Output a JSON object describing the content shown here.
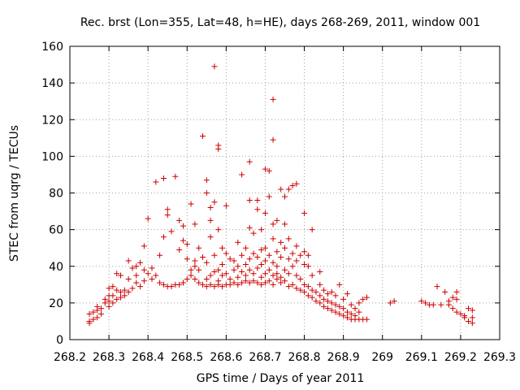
{
  "chart_data": {
    "type": "scatter",
    "title": "Rec. brst (Lon=355, Lat=48, h=HE), days 268-269, 2011, window 001",
    "xlabel": "GPS time / Days of year 2011",
    "ylabel": "STEC from uqrg / TECUs",
    "xlim": [
      268.2,
      269.3
    ],
    "ylim": [
      0,
      160
    ],
    "xticks": [
      "268.2",
      "268.3",
      "268.4",
      "268.5",
      "268.6",
      "268.7",
      "268.8",
      "268.9",
      "269",
      "269.1",
      "269.2",
      "269.3"
    ],
    "yticks": [
      "0",
      "20",
      "40",
      "60",
      "80",
      "100",
      "120",
      "140",
      "160"
    ],
    "grid": true,
    "marker": "+",
    "color": "#cc0000",
    "points": [
      [
        268.25,
        9
      ],
      [
        268.25,
        10
      ],
      [
        268.25,
        14
      ],
      [
        268.26,
        11
      ],
      [
        268.26,
        15
      ],
      [
        268.27,
        12
      ],
      [
        268.27,
        16
      ],
      [
        268.27,
        18
      ],
      [
        268.28,
        14
      ],
      [
        268.28,
        17
      ],
      [
        268.29,
        20
      ],
      [
        268.29,
        22
      ],
      [
        268.3,
        18
      ],
      [
        268.3,
        21
      ],
      [
        268.3,
        24
      ],
      [
        268.3,
        28
      ],
      [
        268.31,
        20
      ],
      [
        268.31,
        24
      ],
      [
        268.31,
        29
      ],
      [
        268.32,
        22
      ],
      [
        268.32,
        27
      ],
      [
        268.32,
        36
      ],
      [
        268.33,
        23
      ],
      [
        268.33,
        26
      ],
      [
        268.33,
        35
      ],
      [
        268.34,
        24
      ],
      [
        268.34,
        27
      ],
      [
        268.35,
        26
      ],
      [
        268.35,
        33
      ],
      [
        268.35,
        43
      ],
      [
        268.36,
        28
      ],
      [
        268.36,
        39
      ],
      [
        268.37,
        31
      ],
      [
        268.37,
        35
      ],
      [
        268.37,
        40
      ],
      [
        268.38,
        29
      ],
      [
        268.38,
        42
      ],
      [
        268.39,
        32
      ],
      [
        268.39,
        38
      ],
      [
        268.39,
        51
      ],
      [
        268.4,
        36
      ],
      [
        268.4,
        66
      ],
      [
        268.41,
        33
      ],
      [
        268.41,
        39
      ],
      [
        268.42,
        35
      ],
      [
        268.42,
        86
      ],
      [
        268.43,
        31
      ],
      [
        268.43,
        46
      ],
      [
        268.44,
        30
      ],
      [
        268.44,
        56
      ],
      [
        268.44,
        88
      ],
      [
        268.45,
        29
      ],
      [
        268.45,
        68
      ],
      [
        268.45,
        71
      ],
      [
        268.46,
        29
      ],
      [
        268.46,
        59
      ],
      [
        268.47,
        30
      ],
      [
        268.47,
        89
      ],
      [
        268.48,
        30
      ],
      [
        268.48,
        49
      ],
      [
        268.48,
        65
      ],
      [
        268.49,
        31
      ],
      [
        268.49,
        54
      ],
      [
        268.49,
        62
      ],
      [
        268.5,
        33
      ],
      [
        268.5,
        44
      ],
      [
        268.5,
        52
      ],
      [
        268.51,
        35
      ],
      [
        268.51,
        38
      ],
      [
        268.51,
        74
      ],
      [
        268.52,
        33
      ],
      [
        268.52,
        40
      ],
      [
        268.52,
        43
      ],
      [
        268.52,
        63
      ],
      [
        268.53,
        31
      ],
      [
        268.53,
        38
      ],
      [
        268.53,
        50
      ],
      [
        268.54,
        30
      ],
      [
        268.54,
        45
      ],
      [
        268.54,
        111
      ],
      [
        268.55,
        29
      ],
      [
        268.55,
        33
      ],
      [
        268.55,
        42
      ],
      [
        268.55,
        80
      ],
      [
        268.55,
        87
      ],
      [
        268.56,
        30
      ],
      [
        268.56,
        35
      ],
      [
        268.56,
        56
      ],
      [
        268.56,
        65
      ],
      [
        268.56,
        72
      ],
      [
        268.57,
        29
      ],
      [
        268.57,
        37
      ],
      [
        268.57,
        46
      ],
      [
        268.57,
        75
      ],
      [
        268.57,
        149
      ],
      [
        268.58,
        30
      ],
      [
        268.58,
        32
      ],
      [
        268.58,
        38
      ],
      [
        268.58,
        60
      ],
      [
        268.58,
        104
      ],
      [
        268.58,
        106
      ],
      [
        268.59,
        29
      ],
      [
        268.59,
        35
      ],
      [
        268.59,
        41
      ],
      [
        268.59,
        50
      ],
      [
        268.6,
        30
      ],
      [
        268.6,
        36
      ],
      [
        268.6,
        47
      ],
      [
        268.6,
        73
      ],
      [
        268.61,
        30
      ],
      [
        268.61,
        33
      ],
      [
        268.61,
        44
      ],
      [
        268.62,
        31
      ],
      [
        268.62,
        38
      ],
      [
        268.62,
        43
      ],
      [
        268.63,
        30
      ],
      [
        268.63,
        34
      ],
      [
        268.63,
        40
      ],
      [
        268.63,
        53
      ],
      [
        268.64,
        31
      ],
      [
        268.64,
        37
      ],
      [
        268.64,
        46
      ],
      [
        268.64,
        90
      ],
      [
        268.65,
        32
      ],
      [
        268.65,
        35
      ],
      [
        268.65,
        41
      ],
      [
        268.65,
        50
      ],
      [
        268.66,
        31
      ],
      [
        268.66,
        38
      ],
      [
        268.66,
        44
      ],
      [
        268.66,
        61
      ],
      [
        268.66,
        76
      ],
      [
        268.66,
        97
      ],
      [
        268.67,
        32
      ],
      [
        268.67,
        36
      ],
      [
        268.67,
        47
      ],
      [
        268.67,
        58
      ],
      [
        268.68,
        31
      ],
      [
        268.68,
        39
      ],
      [
        268.68,
        45
      ],
      [
        268.68,
        76
      ],
      [
        268.68,
        71
      ],
      [
        268.69,
        30
      ],
      [
        268.69,
        34
      ],
      [
        268.69,
        41
      ],
      [
        268.69,
        49
      ],
      [
        268.69,
        60
      ],
      [
        268.7,
        31
      ],
      [
        268.7,
        36
      ],
      [
        268.7,
        43
      ],
      [
        268.7,
        50
      ],
      [
        268.7,
        69
      ],
      [
        268.7,
        93
      ],
      [
        268.71,
        32
      ],
      [
        268.71,
        38
      ],
      [
        268.71,
        46
      ],
      [
        268.71,
        78
      ],
      [
        268.71,
        92
      ],
      [
        268.72,
        30
      ],
      [
        268.72,
        35
      ],
      [
        268.72,
        42
      ],
      [
        268.72,
        55
      ],
      [
        268.72,
        63
      ],
      [
        268.72,
        131
      ],
      [
        268.72,
        109
      ],
      [
        268.73,
        33
      ],
      [
        268.73,
        36
      ],
      [
        268.73,
        40
      ],
      [
        268.73,
        48
      ],
      [
        268.73,
        65
      ],
      [
        268.74,
        31
      ],
      [
        268.74,
        34
      ],
      [
        268.74,
        45
      ],
      [
        268.74,
        53
      ],
      [
        268.74,
        82
      ],
      [
        268.75,
        32
      ],
      [
        268.75,
        38
      ],
      [
        268.75,
        50
      ],
      [
        268.75,
        63
      ],
      [
        268.75,
        78
      ],
      [
        268.76,
        29
      ],
      [
        268.76,
        36
      ],
      [
        268.76,
        44
      ],
      [
        268.76,
        55
      ],
      [
        268.76,
        82
      ],
      [
        268.77,
        30
      ],
      [
        268.77,
        40
      ],
      [
        268.77,
        47
      ],
      [
        268.77,
        84
      ],
      [
        268.78,
        28
      ],
      [
        268.78,
        35
      ],
      [
        268.78,
        43
      ],
      [
        268.78,
        51
      ],
      [
        268.78,
        85
      ],
      [
        268.79,
        27
      ],
      [
        268.79,
        33
      ],
      [
        268.79,
        46
      ],
      [
        268.8,
        26
      ],
      [
        268.8,
        30
      ],
      [
        268.8,
        41
      ],
      [
        268.8,
        48
      ],
      [
        268.8,
        69
      ],
      [
        268.81,
        24
      ],
      [
        268.81,
        29
      ],
      [
        268.81,
        40
      ],
      [
        268.81,
        46
      ],
      [
        268.82,
        23
      ],
      [
        268.82,
        27
      ],
      [
        268.82,
        35
      ],
      [
        268.82,
        60
      ],
      [
        268.83,
        21
      ],
      [
        268.83,
        26
      ],
      [
        268.84,
        20
      ],
      [
        268.84,
        24
      ],
      [
        268.84,
        30
      ],
      [
        268.84,
        37
      ],
      [
        268.85,
        18
      ],
      [
        268.85,
        22
      ],
      [
        268.85,
        27
      ],
      [
        268.86,
        17
      ],
      [
        268.86,
        21
      ],
      [
        268.86,
        25
      ],
      [
        268.87,
        16
      ],
      [
        268.87,
        20
      ],
      [
        268.87,
        26
      ],
      [
        268.88,
        15
      ],
      [
        268.88,
        19
      ],
      [
        268.88,
        24
      ],
      [
        268.89,
        14
      ],
      [
        268.89,
        18
      ],
      [
        268.89,
        30
      ],
      [
        268.9,
        13
      ],
      [
        268.9,
        17
      ],
      [
        268.9,
        22
      ],
      [
        268.91,
        12
      ],
      [
        268.91,
        15
      ],
      [
        268.91,
        25
      ],
      [
        268.92,
        11
      ],
      [
        268.92,
        14
      ],
      [
        268.92,
        19
      ],
      [
        268.93,
        11
      ],
      [
        268.93,
        13
      ],
      [
        268.93,
        17
      ],
      [
        268.94,
        11
      ],
      [
        268.94,
        15
      ],
      [
        268.94,
        20
      ],
      [
        268.95,
        11
      ],
      [
        268.95,
        22
      ],
      [
        268.96,
        11
      ],
      [
        268.96,
        23
      ],
      [
        269.02,
        20
      ],
      [
        269.03,
        21
      ],
      [
        269.1,
        21
      ],
      [
        269.11,
        20
      ],
      [
        269.12,
        19
      ],
      [
        269.13,
        19
      ],
      [
        269.14,
        29
      ],
      [
        269.15,
        19
      ],
      [
        269.16,
        26
      ],
      [
        269.17,
        19
      ],
      [
        269.17,
        21
      ],
      [
        269.18,
        17
      ],
      [
        269.18,
        23
      ],
      [
        269.19,
        15
      ],
      [
        269.19,
        22
      ],
      [
        269.19,
        26
      ],
      [
        269.2,
        14
      ],
      [
        269.21,
        12
      ],
      [
        269.21,
        13
      ],
      [
        269.22,
        10
      ],
      [
        269.22,
        17
      ],
      [
        269.23,
        9
      ],
      [
        269.23,
        12
      ],
      [
        269.23,
        16
      ]
    ]
  }
}
